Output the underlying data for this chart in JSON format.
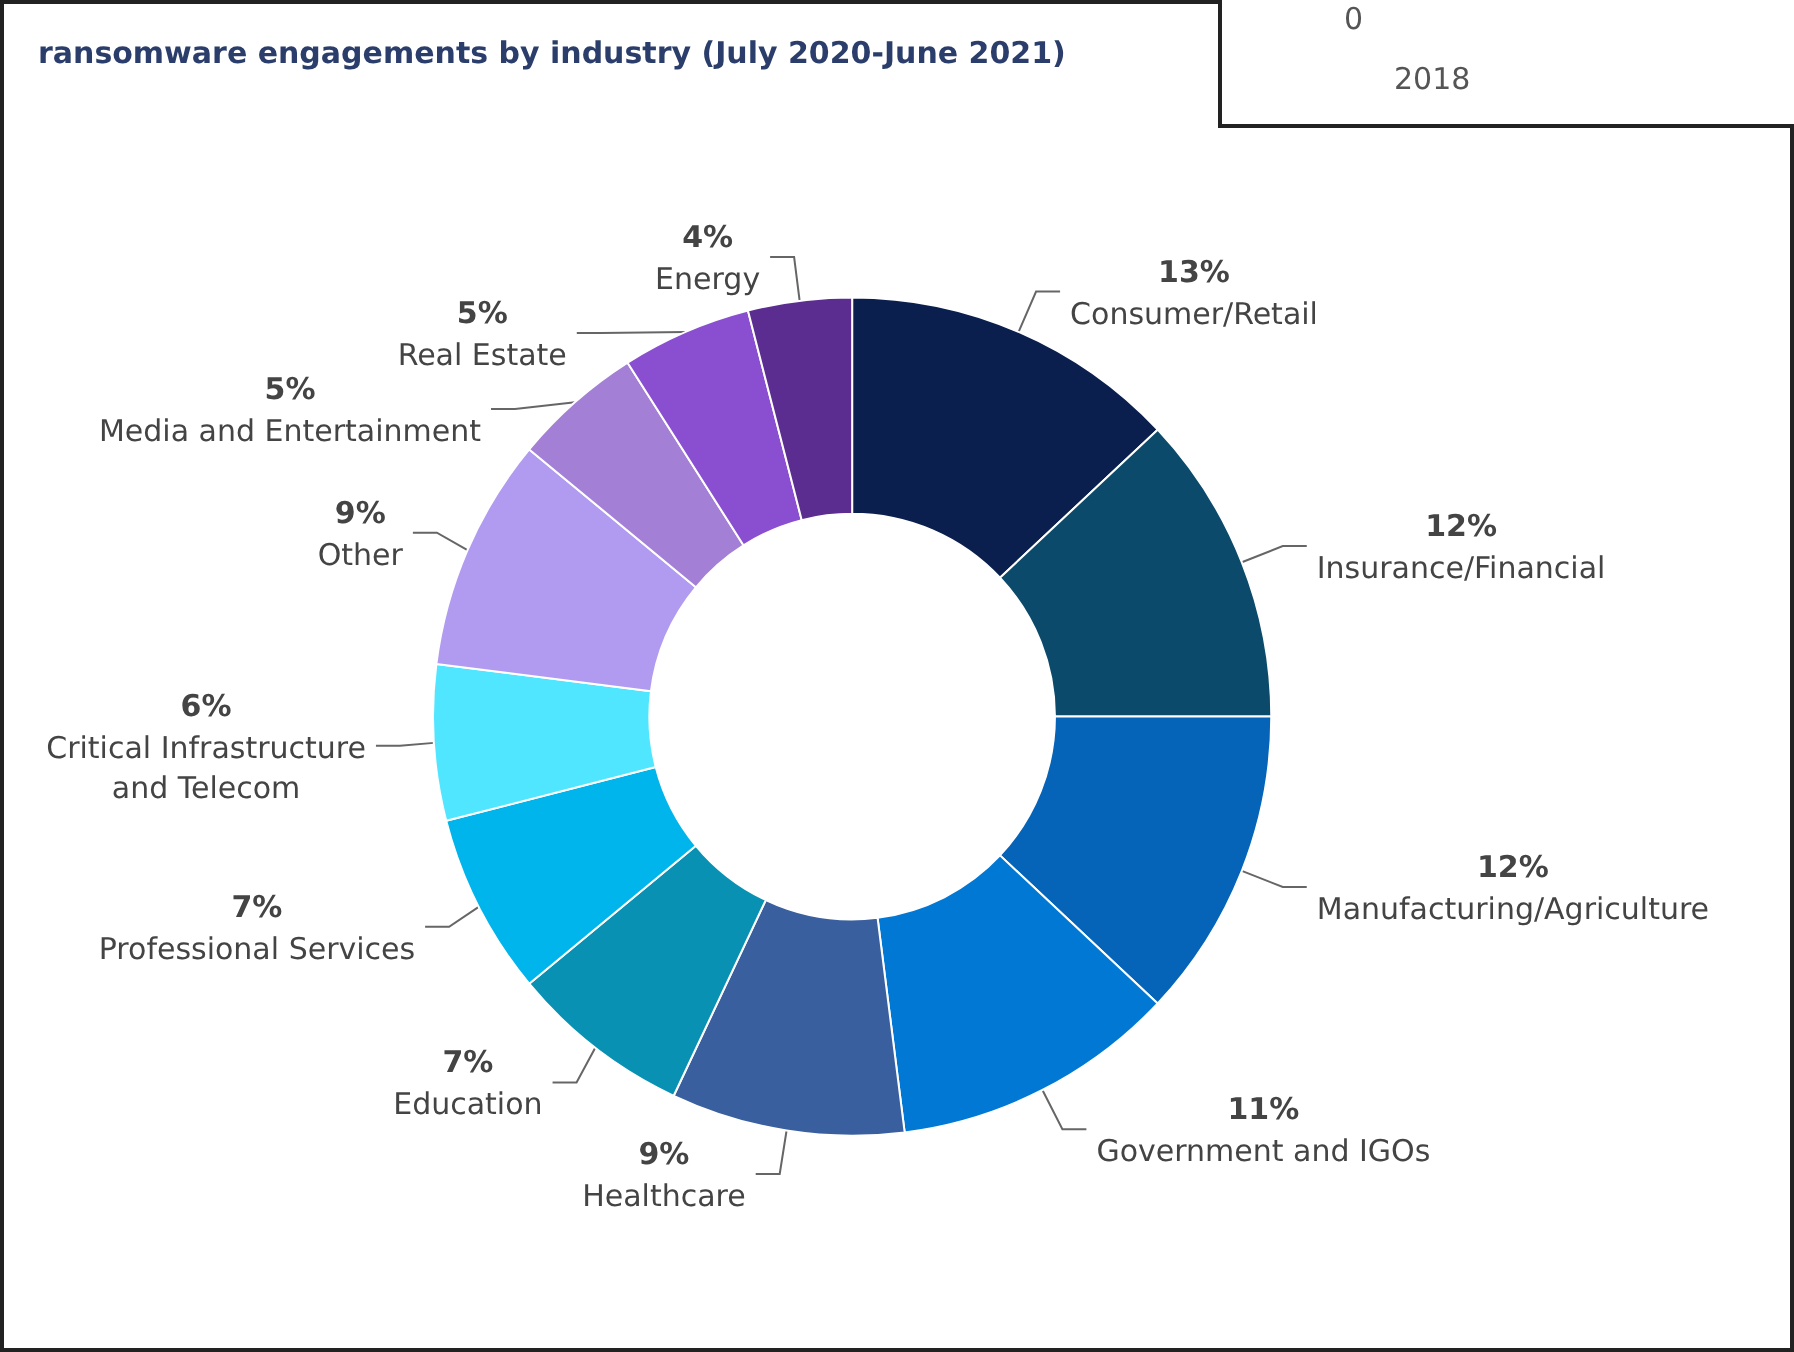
{
  "chart_data": {
    "type": "donut",
    "title": "ransomware engagements by industry (July 2020-June 2021)",
    "categories": [
      "Consumer/Retail",
      "Insurance/Financial",
      "Manufacturing/Agriculture",
      "Government and IGOs",
      "Healthcare",
      "Education",
      "Professional Services",
      "Critical Infrastructure and Telecom",
      "Other",
      "Media and Entertainment",
      "Real Estate",
      "Energy"
    ],
    "values": [
      13,
      12,
      12,
      11,
      9,
      7,
      7,
      6,
      9,
      5,
      5,
      4
    ],
    "colors": [
      "#0a1f4d",
      "#0b4a6b",
      "#0563b8",
      "#0078d4",
      "#3a5f9e",
      "#0891b2",
      "#00b4ec",
      "#50e6ff",
      "#b19bf0",
      "#a47fd6",
      "#8a4fd0",
      "#5c2d91"
    ],
    "value_labels": [
      "13%",
      "12%",
      "12%",
      "11%",
      "9%",
      "7%",
      "7%",
      "6%",
      "9%",
      "5%",
      "5%",
      "4%"
    ],
    "annotations": [
      "0",
      "2018"
    ],
    "legend": false
  }
}
